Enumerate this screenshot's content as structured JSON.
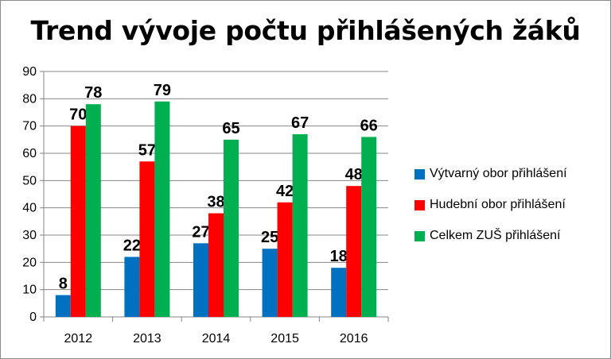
{
  "chart_data": {
    "type": "bar",
    "title": "Trend vývoje počtu přihlášených žáků",
    "categories": [
      "2012",
      "2013",
      "2014",
      "2015",
      "2016"
    ],
    "series": [
      {
        "name": "Výtvarný obor přihlášení",
        "color": "#0070c0",
        "values": [
          8,
          22,
          27,
          25,
          18
        ]
      },
      {
        "name": "Hudební obor přihlášení",
        "color": "#ff0000",
        "values": [
          70,
          57,
          38,
          42,
          48
        ]
      },
      {
        "name": "Celkem ZUŠ přihlášení",
        "color": "#00b050",
        "values": [
          78,
          79,
          65,
          67,
          66
        ]
      }
    ],
    "ylim": [
      0,
      90
    ],
    "yticks": [
      0,
      10,
      20,
      30,
      40,
      50,
      60,
      70,
      80,
      90
    ],
    "grid": true,
    "legend_position": "right",
    "data_labels": true
  }
}
